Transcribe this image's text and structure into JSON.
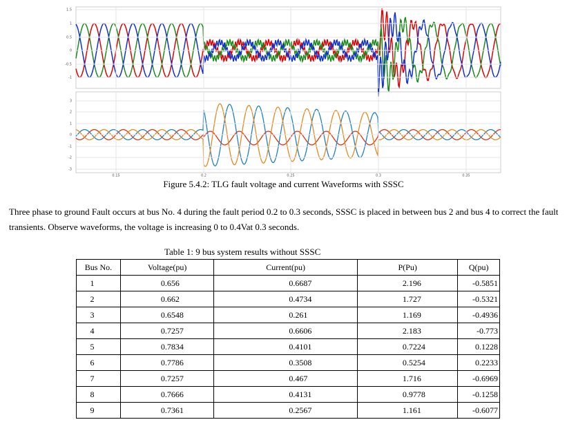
{
  "figure": {
    "top_yticks": [
      "1.5",
      "1",
      "0.5",
      "0",
      "-0.5",
      "-1"
    ],
    "bottom_yticks": [
      "3",
      "2",
      "1",
      "0",
      "-1",
      "-2",
      "-3"
    ],
    "xticks": [
      "0.15",
      "0.2",
      "0.25",
      "0.3",
      "0.35"
    ],
    "caption": "Figure 5.4.2: TLG fault voltage and current Waveforms with SSSC"
  },
  "paragraph": "Three phase to ground Fault occurs at bus No. 4 during the fault period 0.2 to 0.3 seconds, SSSC is placed in between bus 2 and bus 4 to correct the fault transients. Observe waveforms, the voltage is increasing 0 to 0.4Vat 0.3 seconds.",
  "table": {
    "title": "Table 1: 9 bus system results without SSSC",
    "header": [
      "Bus No.",
      "Voltage(pu)",
      "Current(pu)",
      "P(Pu)",
      "Q(pu)"
    ],
    "rows": [
      [
        "1",
        "0.656",
        "0.6687",
        "2.196",
        "-0.5851"
      ],
      [
        "2",
        "0.662",
        "0.4734",
        "1.727",
        "-0.5321"
      ],
      [
        "3",
        "0.6548",
        "0.261",
        "1.169",
        "-0.4936"
      ],
      [
        "4",
        "0.7257",
        "0.6606",
        "2.183",
        "-0.773"
      ],
      [
        "5",
        "0.7834",
        "0.4101",
        "0.7224",
        "0.1228"
      ],
      [
        "6",
        "0.7786",
        "0.3508",
        "0.5254",
        "0.2233"
      ],
      [
        "7",
        "0.7257",
        "0.467",
        "1.716",
        "-0.6969"
      ],
      [
        "8",
        "0.7666",
        "0.4131",
        "0.9778",
        "-0.1258"
      ],
      [
        "9",
        "0.7361",
        "0.2567",
        "1.161",
        "-0.6077"
      ]
    ]
  }
}
